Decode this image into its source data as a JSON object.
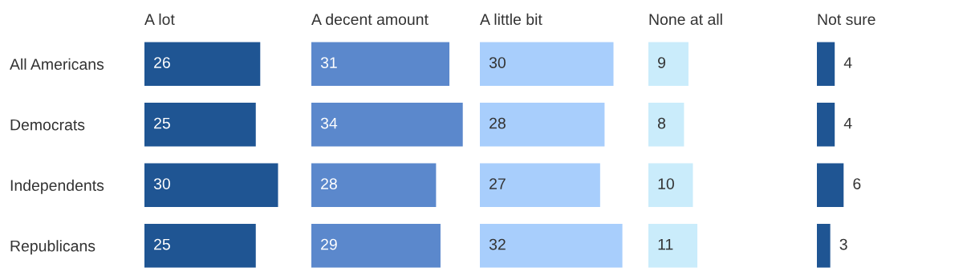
{
  "chart_data": [
    {
      "type": "bar",
      "orientation": "horizontal",
      "title": "A lot",
      "categories": [
        "All Americans",
        "Democrats",
        "Independents",
        "Republicans"
      ],
      "values": [
        26,
        25,
        30,
        25
      ],
      "color": "#1f5593",
      "data_labels": true,
      "tick_labels": "y",
      "grid": false,
      "legend": false
    },
    {
      "type": "bar",
      "orientation": "horizontal",
      "title": "A decent amount",
      "categories": [
        null,
        null,
        null,
        null
      ],
      "values": [
        31,
        34,
        28,
        29
      ],
      "color": "#5b88cc",
      "data_labels": true,
      "tick_labels": false,
      "grid": false,
      "legend": false
    },
    {
      "type": "bar",
      "orientation": "horizontal",
      "title": "A little bit",
      "categories": [
        null,
        null,
        null,
        null
      ],
      "values": [
        30,
        28,
        27,
        32
      ],
      "color": "#a8cefc",
      "data_labels": true,
      "tick_labels": false,
      "grid": false,
      "legend": false
    },
    {
      "type": "bar",
      "orientation": "horizontal",
      "title": "None at all",
      "categories": [
        null,
        null,
        null,
        null
      ],
      "values": [
        9,
        8,
        10,
        11
      ],
      "color": "#caecfb",
      "data_labels": true,
      "tick_labels": false,
      "grid": false,
      "legend": false
    },
    {
      "type": "bar",
      "orientation": "horizontal",
      "title": "Not sure",
      "categories": [
        null,
        null,
        null,
        null
      ],
      "values": [
        4,
        4,
        6,
        3
      ],
      "color": "#1f5593",
      "data_labels": true,
      "tick_labels": false,
      "grid": false,
      "legend": false
    }
  ]
}
